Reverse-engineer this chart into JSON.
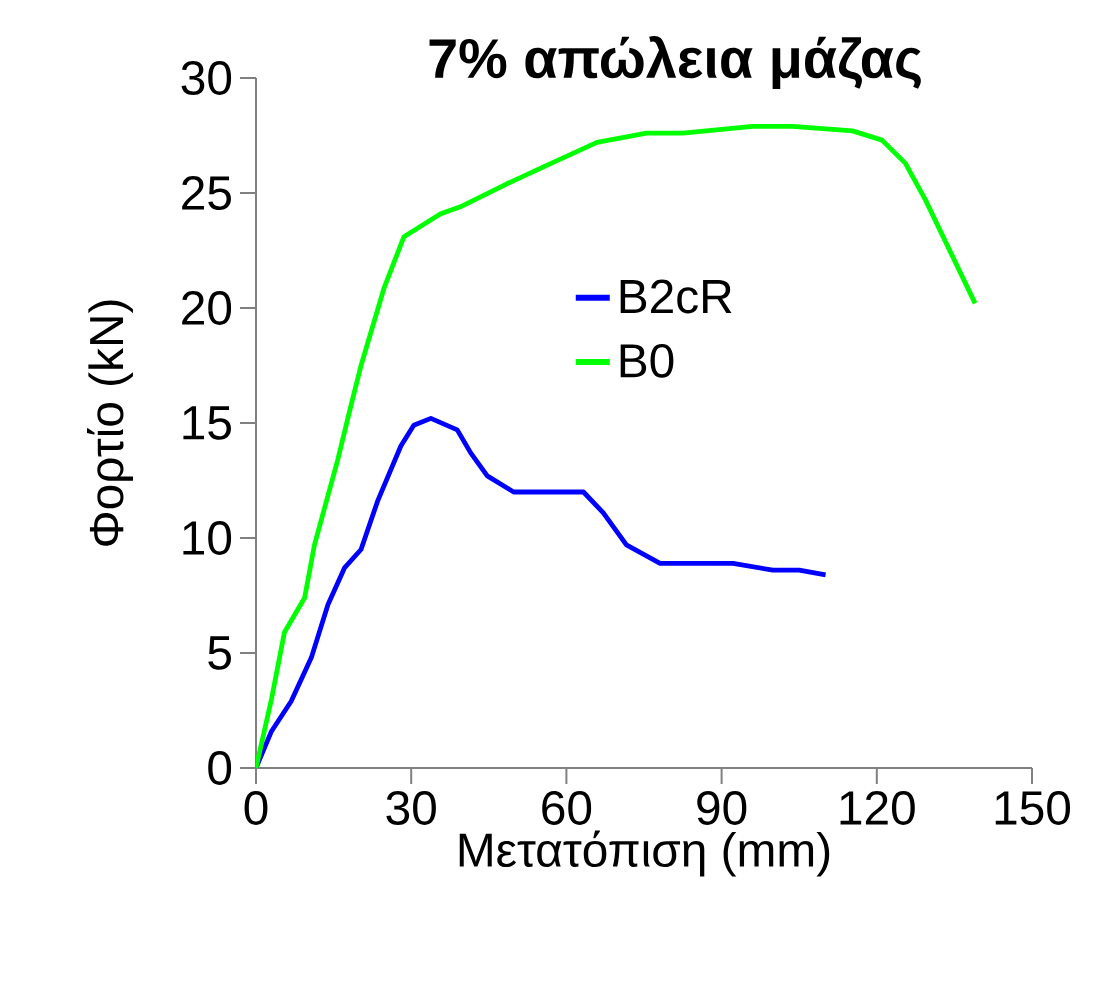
{
  "chart_data": {
    "type": "line",
    "title": "7% απώλεια μάζας",
    "xlabel": "Μετατόπιση (mm)",
    "ylabel": "Φορτίο (kN)",
    "xlim": [
      0,
      150
    ],
    "xticks": [
      0,
      30,
      60,
      90,
      120,
      150
    ],
    "ylim": [
      0,
      30
    ],
    "yticks": [
      0,
      5,
      10,
      15,
      20,
      25,
      30
    ],
    "grid": false,
    "legend": "center",
    "marker": "none",
    "line_style": "solid",
    "series": [
      {
        "name": "B2cR",
        "color": "#0000ff",
        "x": [
          0,
          3,
          6.8,
          10.7,
          13.9,
          17.1,
          20.3,
          23.5,
          28,
          30.5,
          33.8,
          38.9,
          41.5,
          44.7,
          49.8,
          63.3,
          67.1,
          71.6,
          78.1,
          92.2,
          99.9,
          105,
          110.1
        ],
        "values": [
          0,
          1.6,
          2.9,
          4.8,
          7.1,
          8.7,
          9.5,
          11.6,
          14.0,
          14.9,
          15.2,
          14.7,
          13.7,
          12.7,
          12.0,
          12.0,
          11.1,
          9.7,
          8.9,
          8.9,
          8.6,
          8.6,
          8.4
        ]
      },
      {
        "name": "B0",
        "color": "#00ff00",
        "x": [
          0,
          3,
          5.5,
          9.4,
          11.3,
          15.8,
          18.4,
          20.3,
          24.8,
          28.6,
          35.7,
          39.5,
          48.5,
          56.2,
          65.9,
          75.5,
          82.5,
          96,
          103.7,
          115.3,
          121,
          125.5,
          129.4,
          139
        ],
        "values": [
          0,
          3.0,
          5.9,
          7.4,
          9.7,
          13.4,
          15.8,
          17.5,
          20.9,
          23.1,
          24.1,
          24.4,
          25.4,
          26.2,
          27.2,
          27.6,
          27.6,
          27.9,
          27.9,
          27.7,
          27.3,
          26.3,
          24.7,
          20.2
        ]
      }
    ]
  }
}
